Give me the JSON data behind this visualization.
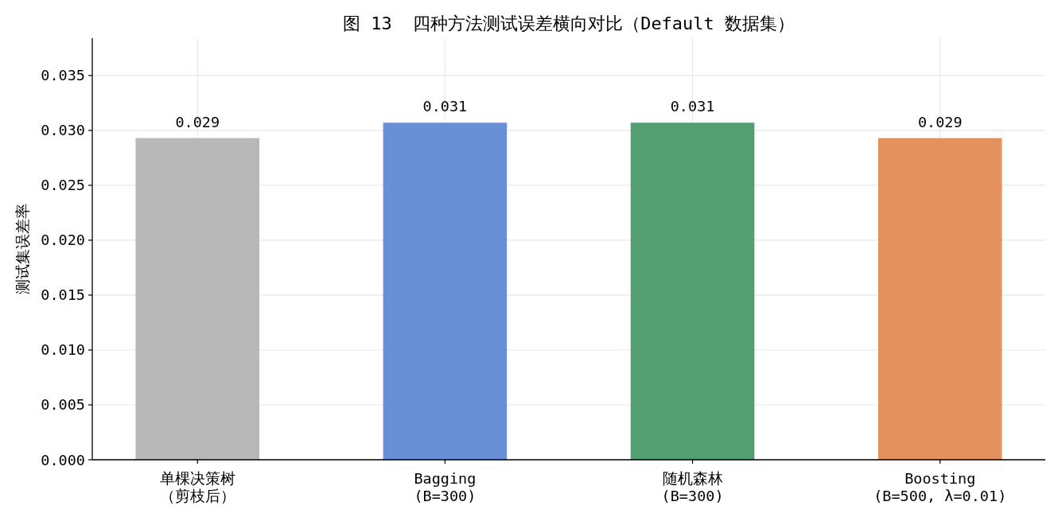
{
  "chart_data": {
    "type": "bar",
    "title": "图 13  四种方法测试误差横向对比（Default 数据集）",
    "ylabel": "测试集误差率",
    "categories": [
      "单棵决策树（剪枝后）",
      "Bagging\n(B=300)",
      "随机森林\n(B=300)",
      "Boosting\n(B=500, λ=0.01)"
    ],
    "values": [
      0.0293,
      0.0307,
      0.0307,
      0.0293
    ],
    "colors": [
      "#b8b8b8",
      "#6990d6",
      "#539f72",
      "#e3925d"
    ],
    "value_labels": [
      "0.029",
      "0.031",
      "0.031",
      "0.029"
    ],
    "ylim": [
      0,
      0.0384
    ],
    "yticks": [
      {
        "value": 0,
        "label": "0.000"
      },
      {
        "value": 0.005,
        "label": "0.005"
      },
      {
        "value": 0.01,
        "label": "0.010"
      },
      {
        "value": 0.015,
        "label": "0.015"
      },
      {
        "value": 0.02,
        "label": "0.020"
      },
      {
        "value": 0.025,
        "label": "0.025"
      },
      {
        "value": 0.03,
        "label": "0.030"
      },
      {
        "value": 0.035,
        "label": "0.035"
      }
    ],
    "grid": true
  }
}
